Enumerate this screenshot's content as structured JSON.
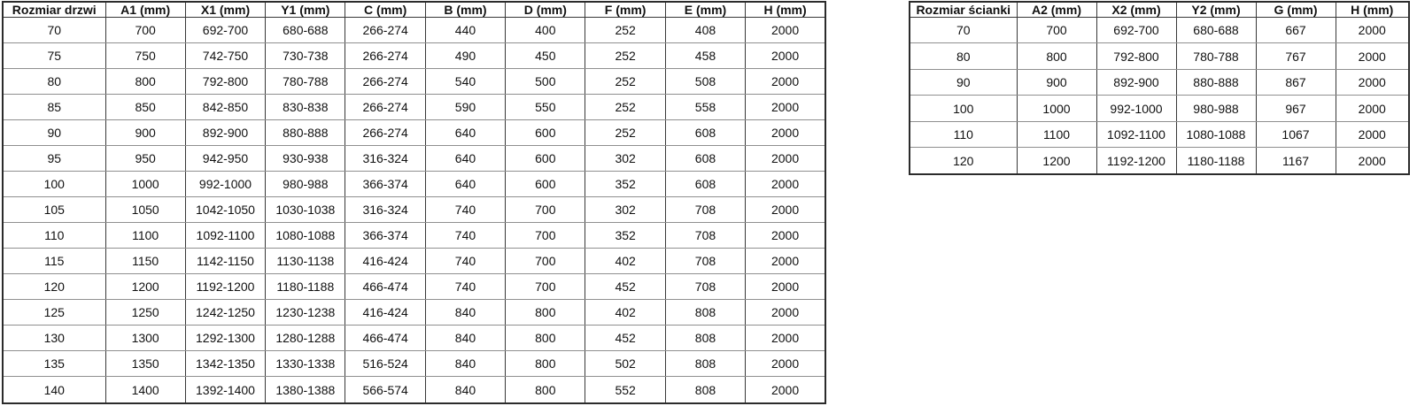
{
  "page": {
    "background": "#ffffff",
    "text_color": "#111111",
    "border_dark": "#383838",
    "border_light": "#8f8f8f"
  },
  "door_table": {
    "headers": [
      "Rozmiar drzwi",
      "A1 (mm)",
      "X1 (mm)",
      "Y1 (mm)",
      "C (mm)",
      "B (mm)",
      "D (mm)",
      "F (mm)",
      "E (mm)",
      "H (mm)"
    ],
    "rows": [
      [
        "70",
        "700",
        "692-700",
        "680-688",
        "266-274",
        "440",
        "400",
        "252",
        "408",
        "2000"
      ],
      [
        "75",
        "750",
        "742-750",
        "730-738",
        "266-274",
        "490",
        "450",
        "252",
        "458",
        "2000"
      ],
      [
        "80",
        "800",
        "792-800",
        "780-788",
        "266-274",
        "540",
        "500",
        "252",
        "508",
        "2000"
      ],
      [
        "85",
        "850",
        "842-850",
        "830-838",
        "266-274",
        "590",
        "550",
        "252",
        "558",
        "2000"
      ],
      [
        "90",
        "900",
        "892-900",
        "880-888",
        "266-274",
        "640",
        "600",
        "252",
        "608",
        "2000"
      ],
      [
        "95",
        "950",
        "942-950",
        "930-938",
        "316-324",
        "640",
        "600",
        "302",
        "608",
        "2000"
      ],
      [
        "100",
        "1000",
        "992-1000",
        "980-988",
        "366-374",
        "640",
        "600",
        "352",
        "608",
        "2000"
      ],
      [
        "105",
        "1050",
        "1042-1050",
        "1030-1038",
        "316-324",
        "740",
        "700",
        "302",
        "708",
        "2000"
      ],
      [
        "110",
        "1100",
        "1092-1100",
        "1080-1088",
        "366-374",
        "740",
        "700",
        "352",
        "708",
        "2000"
      ],
      [
        "115",
        "1150",
        "1142-1150",
        "1130-1138",
        "416-424",
        "740",
        "700",
        "402",
        "708",
        "2000"
      ],
      [
        "120",
        "1200",
        "1192-1200",
        "1180-1188",
        "466-474",
        "740",
        "700",
        "452",
        "708",
        "2000"
      ],
      [
        "125",
        "1250",
        "1242-1250",
        "1230-1238",
        "416-424",
        "840",
        "800",
        "402",
        "808",
        "2000"
      ],
      [
        "130",
        "1300",
        "1292-1300",
        "1280-1288",
        "466-474",
        "840",
        "800",
        "452",
        "808",
        "2000"
      ],
      [
        "135",
        "1350",
        "1342-1350",
        "1330-1338",
        "516-524",
        "840",
        "800",
        "502",
        "808",
        "2000"
      ],
      [
        "140",
        "1400",
        "1392-1400",
        "1380-1388",
        "566-574",
        "840",
        "800",
        "552",
        "808",
        "2000"
      ]
    ]
  },
  "wall_table": {
    "headers": [
      "Rozmiar ścianki",
      "A2 (mm)",
      "X2 (mm)",
      "Y2 (mm)",
      "G (mm)",
      "H (mm)"
    ],
    "rows": [
      [
        "70",
        "700",
        "692-700",
        "680-688",
        "667",
        "2000"
      ],
      [
        "80",
        "800",
        "792-800",
        "780-788",
        "767",
        "2000"
      ],
      [
        "90",
        "900",
        "892-900",
        "880-888",
        "867",
        "2000"
      ],
      [
        "100",
        "1000",
        "992-1000",
        "980-988",
        "967",
        "2000"
      ],
      [
        "110",
        "1100",
        "1092-1100",
        "1080-1088",
        "1067",
        "2000"
      ],
      [
        "120",
        "1200",
        "1192-1200",
        "1180-1188",
        "1167",
        "2000"
      ]
    ]
  }
}
